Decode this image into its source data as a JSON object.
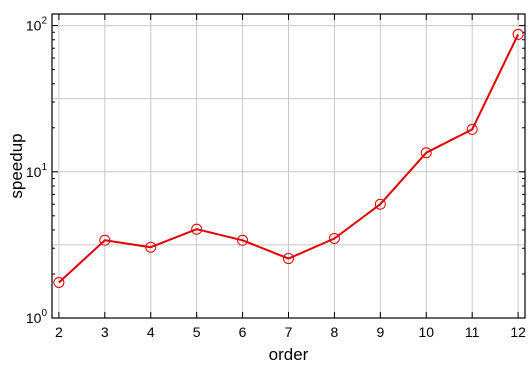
{
  "chart_data": {
    "type": "line",
    "xlabel": "order",
    "ylabel": "speedup",
    "x": [
      2,
      3,
      4,
      5,
      6,
      7,
      8,
      9,
      10,
      11,
      12
    ],
    "series": [
      {
        "values": [
          1.75,
          3.4,
          3.05,
          4.05,
          3.4,
          2.55,
          3.5,
          6.0,
          13.5,
          19.5,
          87.0
        ]
      }
    ],
    "xlim": [
      1.85,
      12.15
    ],
    "ylim": [
      1,
      120
    ],
    "yscale": "log",
    "x_ticks": [
      2,
      3,
      4,
      5,
      6,
      7,
      8,
      9,
      10,
      11,
      12
    ],
    "y_ticks": [
      {
        "base": "10",
        "exp": "0"
      },
      {
        "base": "10",
        "exp": "1"
      },
      {
        "base": "10",
        "exp": "2"
      }
    ],
    "grid": true,
    "line_color": "#e00000",
    "marker": "open-circle"
  }
}
